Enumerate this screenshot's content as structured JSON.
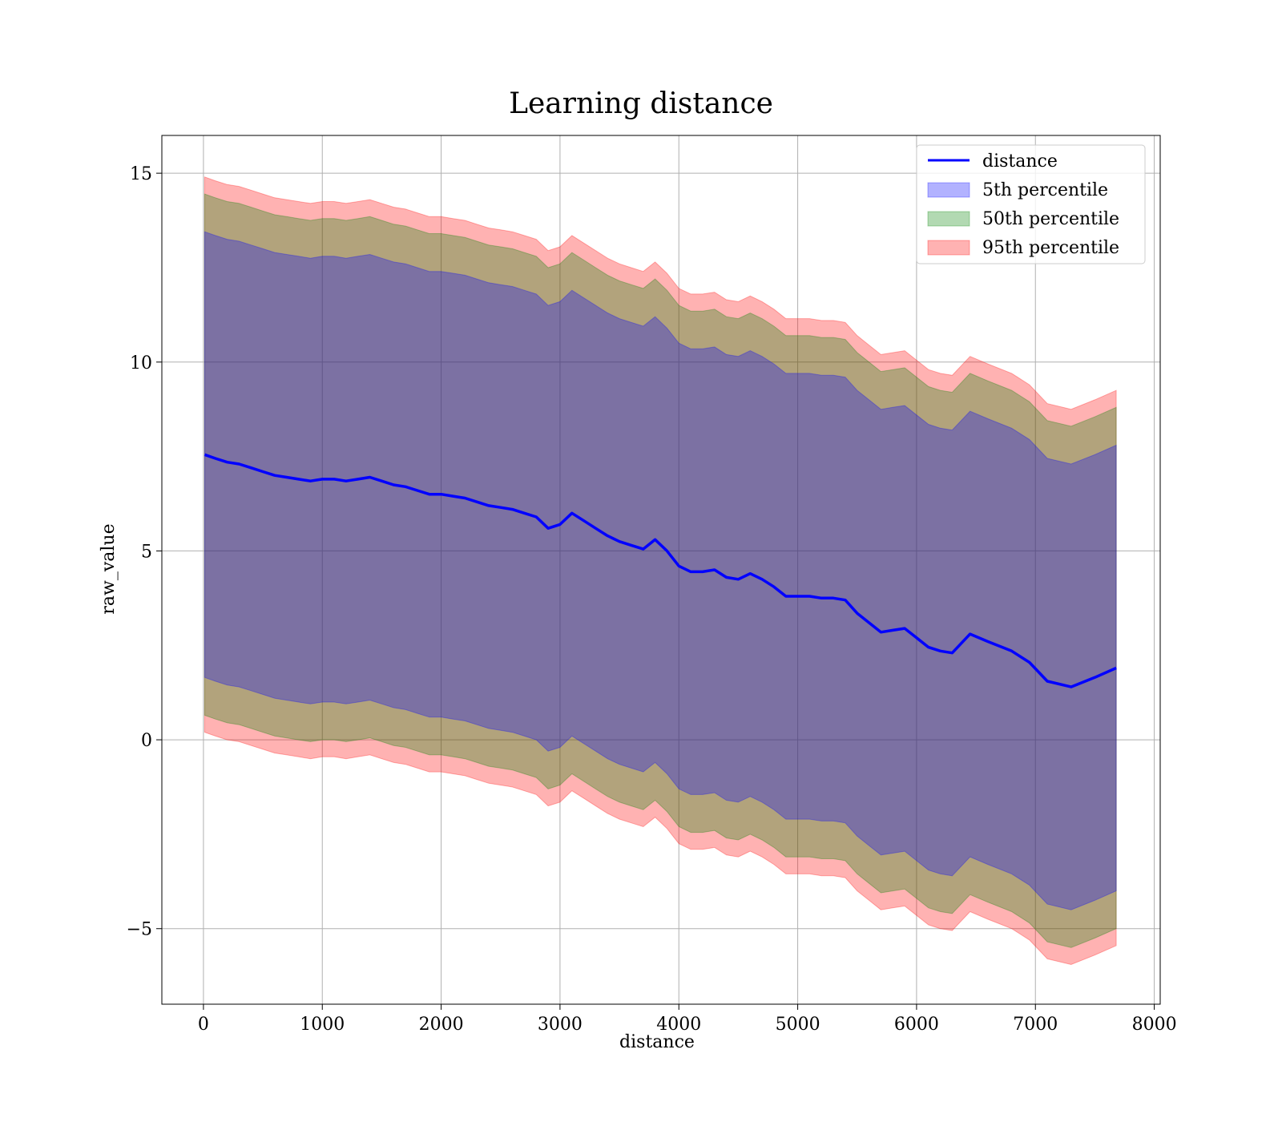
{
  "chart_data": {
    "type": "area",
    "title": "Learning distance",
    "xlabel": "distance",
    "ylabel": "raw_value",
    "xlim": [
      -350,
      8050
    ],
    "ylim": [
      -7,
      16
    ],
    "x_ticks": [
      0,
      1000,
      2000,
      3000,
      4000,
      5000,
      6000,
      7000,
      8000
    ],
    "x_tick_labels": [
      "0",
      "1000",
      "2000",
      "3000",
      "4000",
      "5000",
      "6000",
      "7000",
      "8000"
    ],
    "y_ticks": [
      -5,
      0,
      5,
      10,
      15
    ],
    "y_tick_labels": [
      "−5",
      "0",
      "5",
      "10",
      "15"
    ],
    "grid": true,
    "legend_position": "top-right",
    "x": [
      10,
      100,
      200,
      300,
      400,
      500,
      600,
      700,
      800,
      900,
      1000,
      1100,
      1200,
      1300,
      1400,
      1500,
      1600,
      1700,
      1800,
      1900,
      2000,
      2100,
      2200,
      2300,
      2400,
      2500,
      2600,
      2700,
      2800,
      2900,
      3000,
      3100,
      3200,
      3300,
      3400,
      3500,
      3600,
      3700,
      3800,
      3900,
      4000,
      4100,
      4200,
      4300,
      4400,
      4500,
      4600,
      4700,
      4800,
      4900,
      5000,
      5100,
      5200,
      5300,
      5400,
      5500,
      5600,
      5700,
      5800,
      5900,
      6000,
      6100,
      6200,
      6300,
      6450,
      6600,
      6800,
      6950,
      7100,
      7300,
      7500,
      7680
    ],
    "series": [
      {
        "name": "distance",
        "kind": "line",
        "color": "#0000ff",
        "values": [
          7.55,
          7.45,
          7.35,
          7.3,
          7.2,
          7.1,
          7.0,
          6.95,
          6.9,
          6.85,
          6.9,
          6.9,
          6.85,
          6.9,
          6.95,
          6.85,
          6.75,
          6.7,
          6.6,
          6.5,
          6.5,
          6.45,
          6.4,
          6.3,
          6.2,
          6.15,
          6.1,
          6.0,
          5.9,
          5.6,
          5.7,
          6.0,
          5.8,
          5.6,
          5.4,
          5.25,
          5.15,
          5.05,
          5.3,
          5.0,
          4.6,
          4.45,
          4.45,
          4.5,
          4.3,
          4.25,
          4.4,
          4.25,
          4.05,
          3.8,
          3.8,
          3.8,
          3.75,
          3.75,
          3.7,
          3.35,
          3.1,
          2.85,
          2.9,
          2.95,
          2.7,
          2.45,
          2.35,
          2.3,
          2.8,
          2.6,
          2.35,
          2.05,
          1.55,
          1.4,
          1.65,
          1.9
        ]
      },
      {
        "name": "5th percentile",
        "kind": "band",
        "color": "#0000ff",
        "half_width": 5.9
      },
      {
        "name": "50th percentile",
        "kind": "band",
        "color": "#008000",
        "half_width": 6.9
      },
      {
        "name": "95th percentile",
        "kind": "band",
        "color": "#ff0000",
        "half_width": 7.35
      }
    ]
  }
}
